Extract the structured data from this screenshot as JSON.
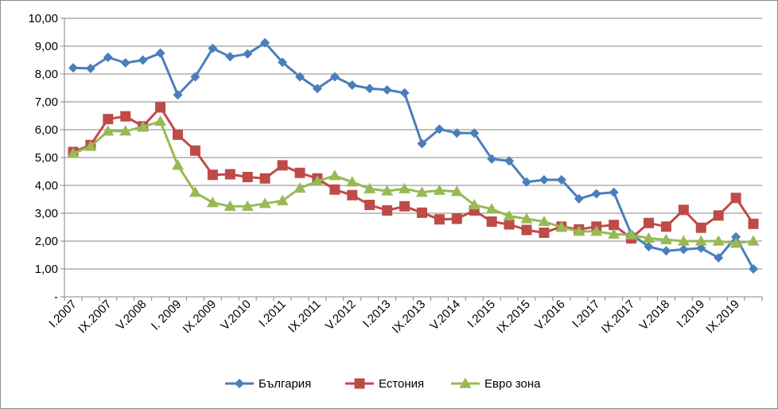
{
  "chart_data": {
    "type": "line",
    "title": "",
    "xlabel": "",
    "ylabel": "",
    "ylim": [
      0,
      10
    ],
    "ystep": 1,
    "y_tick_labels": [
      "-",
      "1,00",
      "2,00",
      "3,00",
      "4,00",
      "5,00",
      "6,00",
      "7,00",
      "8,00",
      "9,00",
      "10,00"
    ],
    "grid": true,
    "legend_position": "bottom",
    "x_tick_labels": [
      "I.2007",
      "IX.2007",
      "V.2008",
      "I. 2009",
      "IX.2009",
      "V.2010",
      "I.2011",
      "IX.2011",
      "V.2012",
      "I.2013",
      "IX.2013",
      "V.2014",
      "I.2015",
      "IX.2015",
      "V.2016",
      "I.2017",
      "IX.2017",
      "V.2018",
      "I.2019",
      "IX.2019"
    ],
    "n_points": 40,
    "series": [
      {
        "name": "България",
        "color": "#4a7ebb",
        "marker": "diamond",
        "values": [
          8.22,
          8.2,
          8.6,
          8.4,
          8.5,
          8.75,
          7.25,
          7.9,
          8.92,
          8.62,
          8.72,
          9.12,
          8.42,
          7.9,
          7.48,
          7.9,
          7.6,
          7.48,
          7.43,
          7.32,
          5.5,
          6.02,
          5.88,
          5.88,
          4.95,
          4.88,
          4.12,
          4.2,
          4.2,
          3.52,
          3.7,
          3.75,
          2.25,
          1.8,
          1.65,
          1.7,
          1.75,
          1.4,
          2.15,
          1.0
        ]
      },
      {
        "name": "Естония",
        "color": "#be4b48",
        "marker": "square",
        "values": [
          5.2,
          5.45,
          6.38,
          6.48,
          6.12,
          6.8,
          5.82,
          5.25,
          4.38,
          4.4,
          4.3,
          4.25,
          4.72,
          4.45,
          4.25,
          3.85,
          3.65,
          3.3,
          3.1,
          3.25,
          3.02,
          2.78,
          2.8,
          3.1,
          2.7,
          2.6,
          2.4,
          2.3,
          2.52,
          2.42,
          2.52,
          2.58,
          2.1,
          2.65,
          2.52,
          3.12,
          2.48,
          2.92,
          3.55,
          2.62
        ]
      },
      {
        "name": "Евро зона",
        "color": "#98b954",
        "marker": "triangle",
        "values": [
          5.15,
          5.4,
          5.95,
          5.95,
          6.1,
          6.3,
          4.72,
          3.75,
          3.38,
          3.25,
          3.25,
          3.35,
          3.45,
          3.9,
          4.15,
          4.35,
          4.12,
          3.88,
          3.8,
          3.88,
          3.75,
          3.82,
          3.78,
          3.3,
          3.15,
          2.9,
          2.8,
          2.7,
          2.5,
          2.35,
          2.35,
          2.25,
          2.22,
          2.1,
          2.05,
          2.0,
          2.0,
          2.0,
          1.92,
          2.0
        ]
      }
    ]
  }
}
